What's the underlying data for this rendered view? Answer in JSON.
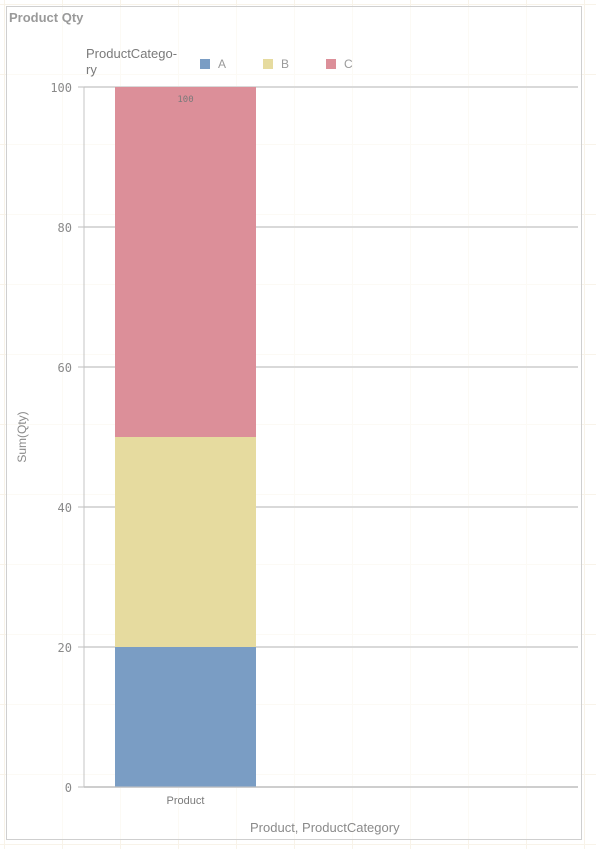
{
  "title": "Product Qty",
  "legend": {
    "title": "ProductCatego-\nry",
    "items": [
      {
        "label": "A",
        "color": "#7a9dc4"
      },
      {
        "label": "B",
        "color": "#e6db9f"
      },
      {
        "label": "C",
        "color": "#dc8f99"
      }
    ]
  },
  "chart_data": {
    "type": "bar",
    "stacked": true,
    "categories": [
      "Product"
    ],
    "series": [
      {
        "name": "A",
        "values": [
          20
        ],
        "color": "#7a9dc4"
      },
      {
        "name": "B",
        "values": [
          30
        ],
        "color": "#e6db9f"
      },
      {
        "name": "C",
        "values": [
          50
        ],
        "color": "#dc8f99"
      }
    ],
    "totals": [
      100
    ],
    "total_labels": [
      "100"
    ],
    "ylabel": "Sum(Qty)",
    "xlabel": "Product, ProductCategory",
    "ylim": [
      0,
      100
    ],
    "yticks": [
      0,
      20,
      40,
      60,
      80,
      100
    ],
    "ytick_labels": [
      "0",
      "20",
      "40",
      "60",
      "80",
      "100"
    ],
    "grid": true,
    "legend_position": "top"
  }
}
